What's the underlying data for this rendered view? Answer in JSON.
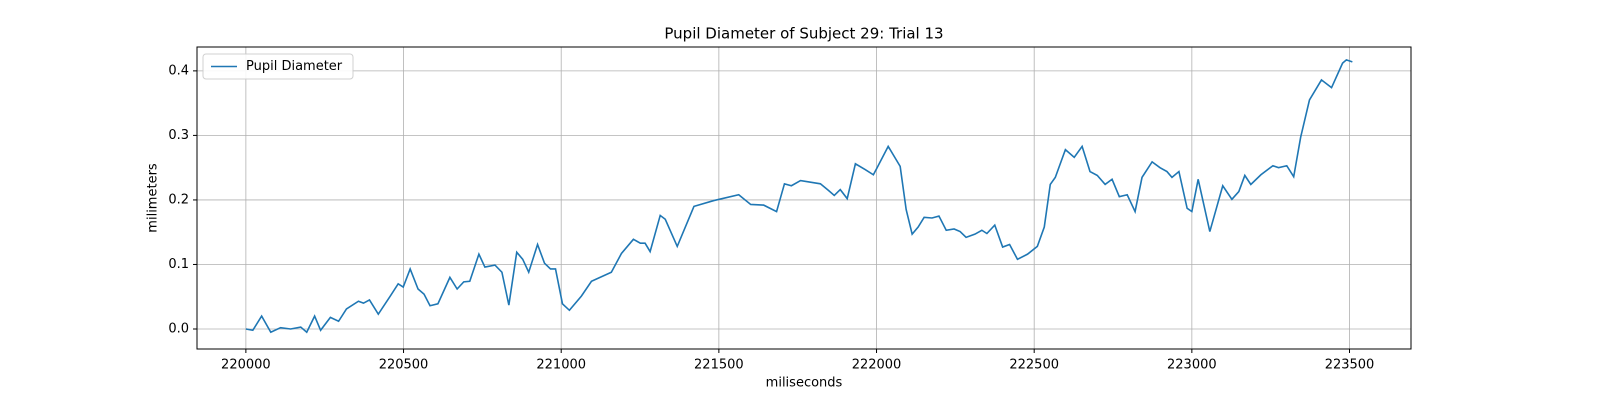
{
  "chart_data": {
    "type": "line",
    "title": "Pupil Diameter of Subject 29: Trial 13",
    "x_label": "miliseconds",
    "y_label": "milimeters",
    "xlim": [
      219845,
      223695
    ],
    "xticks": [
      220000,
      220500,
      221000,
      221500,
      222000,
      222500,
      223000,
      223500
    ],
    "ylim": [
      -0.031,
      0.437
    ],
    "yticks": [
      {
        "value": 0,
        "label": "0.0"
      },
      0.1,
      0.2,
      0.3,
      0.4
    ],
    "grid": true,
    "legend": "upper left",
    "x": [
      220000,
      220022,
      220050,
      220079,
      220110,
      220142,
      220174,
      220193,
      220218,
      220237,
      220268,
      220294,
      220319,
      220357,
      220373,
      220392,
      220420,
      220458,
      220483,
      220499,
      220521,
      220546,
      220565,
      220584,
      220609,
      220647,
      220670,
      220691,
      220710,
      220739,
      220758,
      220790,
      220812,
      220834,
      220859,
      220878,
      220897,
      220925,
      220947,
      220966,
      220982,
      221004,
      221026,
      221064,
      221096,
      221159,
      221191,
      221229,
      221251,
      221266,
      221282,
      221314,
      221330,
      221368,
      221421,
      221484,
      221563,
      221601,
      221642,
      221683,
      221708,
      221730,
      221759,
      221822,
      221847,
      221866,
      221885,
      221907,
      221933,
      221964,
      221990,
      222002,
      222037,
      222075,
      222094,
      222113,
      222132,
      222151,
      222176,
      222198,
      222221,
      222246,
      222265,
      222284,
      222312,
      222334,
      222350,
      222375,
      222400,
      222422,
      222447,
      222479,
      222510,
      222532,
      222551,
      222567,
      222599,
      222627,
      222652,
      222677,
      222700,
      222725,
      222747,
      222770,
      222795,
      222820,
      222842,
      222874,
      222899,
      222921,
      222937,
      222959,
      222985,
      223000,
      223020,
      223057,
      223098,
      223127,
      223149,
      223168,
      223187,
      223219,
      223257,
      223275,
      223301,
      223323,
      223345,
      223373,
      223411,
      223443,
      223478,
      223490,
      223509
    ],
    "series": [
      {
        "name": "Pupil Diameter",
        "color": "#1f77b4",
        "values": [
          0.0,
          -0.002,
          0.02,
          -0.005,
          0.002,
          0.0,
          0.003,
          -0.005,
          0.02,
          -0.002,
          0.018,
          0.012,
          0.031,
          0.043,
          0.04,
          0.045,
          0.023,
          0.051,
          0.07,
          0.065,
          0.093,
          0.062,
          0.054,
          0.036,
          0.039,
          0.08,
          0.062,
          0.073,
          0.074,
          0.116,
          0.096,
          0.099,
          0.088,
          0.037,
          0.119,
          0.108,
          0.088,
          0.131,
          0.102,
          0.093,
          0.093,
          0.039,
          0.029,
          0.051,
          0.074,
          0.088,
          0.117,
          0.139,
          0.133,
          0.133,
          0.12,
          0.176,
          0.17,
          0.128,
          0.19,
          0.199,
          0.208,
          0.193,
          0.192,
          0.182,
          0.225,
          0.222,
          0.23,
          0.225,
          0.215,
          0.207,
          0.216,
          0.202,
          0.256,
          0.247,
          0.239,
          0.25,
          0.283,
          0.252,
          0.185,
          0.147,
          0.158,
          0.173,
          0.172,
          0.175,
          0.153,
          0.155,
          0.151,
          0.142,
          0.147,
          0.153,
          0.148,
          0.161,
          0.127,
          0.131,
          0.108,
          0.116,
          0.128,
          0.158,
          0.224,
          0.235,
          0.278,
          0.266,
          0.283,
          0.244,
          0.238,
          0.224,
          0.232,
          0.205,
          0.208,
          0.182,
          0.235,
          0.259,
          0.25,
          0.244,
          0.235,
          0.244,
          0.187,
          0.182,
          0.232,
          0.151,
          0.222,
          0.201,
          0.213,
          0.238,
          0.224,
          0.239,
          0.253,
          0.25,
          0.253,
          0.236,
          0.297,
          0.355,
          0.386,
          0.374,
          0.412,
          0.417,
          0.414
        ]
      }
    ]
  }
}
